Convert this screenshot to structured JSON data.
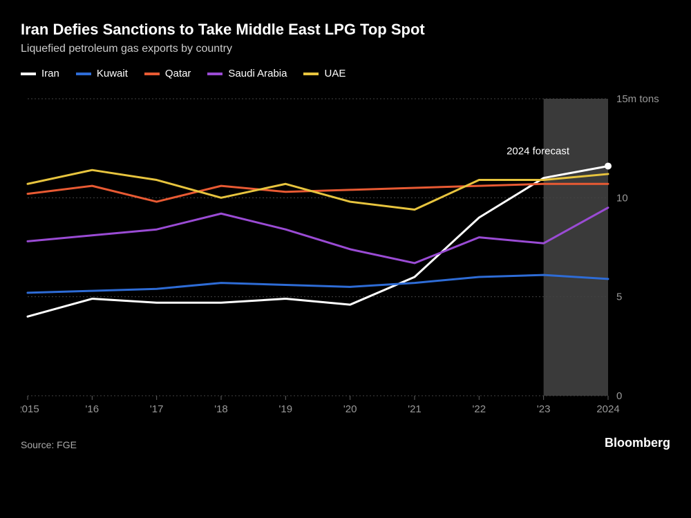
{
  "title": "Iran Defies Sanctions to Take Middle East LPG Top Spot",
  "subtitle": "Liquefied petroleum gas exports by country",
  "source": "Source: FGE",
  "brand": "Bloomberg",
  "chart": {
    "type": "line",
    "background_color": "#000000",
    "grid_color": "#444444",
    "axis_text_color": "#999999",
    "line_width": 3,
    "years": [
      2015,
      2016,
      2017,
      2018,
      2019,
      2020,
      2021,
      2022,
      2023,
      2024
    ],
    "x_labels": [
      "2015",
      "'16",
      "'17",
      "'18",
      "'19",
      "'20",
      "'21",
      "'22",
      "'23",
      "2024"
    ],
    "ylim": [
      0,
      15
    ],
    "y_ticks": [
      0,
      5,
      10,
      15
    ],
    "y_tick_labels": [
      "0",
      "5",
      "10",
      "15m tons"
    ],
    "forecast_start_year": 2023,
    "forecast_end_year": 2024,
    "forecast_band_color": "#3a3a3a",
    "annotation": {
      "text": "2024 forecast",
      "year": 2023.4,
      "y": 12.2
    },
    "end_marker": {
      "series": "Iran",
      "year": 2024,
      "radius": 5,
      "color": "#ffffff"
    },
    "series": [
      {
        "name": "Iran",
        "color": "#ffffff",
        "values": [
          4.0,
          4.9,
          4.7,
          4.7,
          4.9,
          4.6,
          6.0,
          9.0,
          11.0,
          11.6
        ]
      },
      {
        "name": "Kuwait",
        "color": "#2e6cd6",
        "values": [
          5.2,
          5.3,
          5.4,
          5.7,
          5.6,
          5.5,
          5.7,
          6.0,
          6.1,
          5.9
        ]
      },
      {
        "name": "Qatar",
        "color": "#e85a33",
        "values": [
          10.2,
          10.6,
          9.8,
          10.6,
          10.3,
          10.4,
          10.5,
          10.6,
          10.7,
          10.7
        ]
      },
      {
        "name": "Saudi Arabia",
        "color": "#9a4bd4",
        "values": [
          7.8,
          8.1,
          8.4,
          9.2,
          8.4,
          7.4,
          6.7,
          8.0,
          7.7,
          9.5
        ]
      },
      {
        "name": "UAE",
        "color": "#e7c43e",
        "values": [
          10.7,
          11.4,
          10.9,
          10.0,
          10.7,
          9.8,
          9.4,
          10.9,
          10.9,
          11.2
        ]
      }
    ]
  }
}
